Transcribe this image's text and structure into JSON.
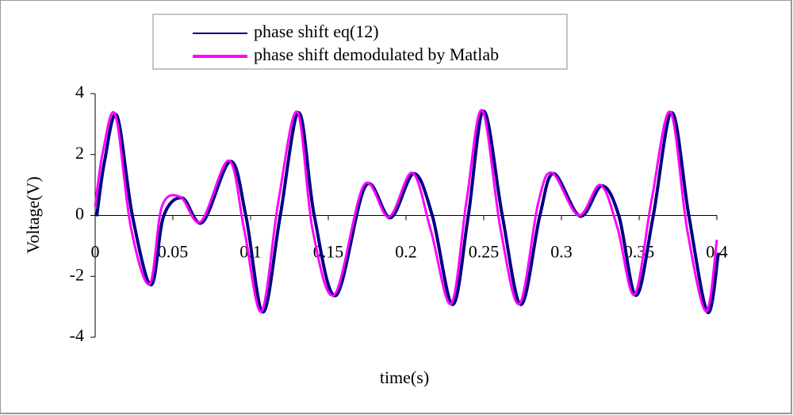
{
  "chart_data": {
    "type": "line",
    "x_label": "time(s)",
    "y_label": "Voltage(V)",
    "x": [
      0,
      0.005,
      0.013,
      0.023,
      0.035,
      0.043,
      0.055,
      0.068,
      0.086,
      0.096,
      0.107,
      0.118,
      0.13,
      0.14,
      0.154,
      0.173,
      0.189,
      0.204,
      0.216,
      0.229,
      0.239,
      0.249,
      0.261,
      0.273,
      0.285,
      0.294,
      0.311,
      0.325,
      0.336,
      0.347,
      0.358,
      0.37,
      0.381,
      0.393,
      0.4
    ],
    "series": [
      {
        "name": "phase shift eq(12)",
        "color": "#000080",
        "values": [
          0,
          1.8,
          3.3,
          0,
          -2.25,
          0,
          0.6,
          -0.2,
          1.8,
          0,
          -3.15,
          0,
          3.4,
          0,
          -2.6,
          1.0,
          -0.05,
          1.4,
          0,
          -2.9,
          0,
          3.45,
          0,
          -2.9,
          0,
          1.4,
          0,
          1.0,
          0,
          -2.6,
          0,
          3.4,
          0,
          -3.15,
          -1.2
        ]
      },
      {
        "name": "phase shift demodulated by Matlab",
        "color": "#ff00ff",
        "values": [
          0.3,
          2.1,
          3.3,
          -0.4,
          -2.25,
          0.3,
          0.6,
          -0.2,
          1.8,
          -0.5,
          -3.15,
          0.5,
          3.4,
          -0.5,
          -2.6,
          1.0,
          -0.05,
          1.4,
          -0.5,
          -2.9,
          0.5,
          3.45,
          -0.5,
          -2.9,
          0.4,
          1.4,
          0,
          1.0,
          -0.4,
          -2.6,
          0.5,
          3.4,
          -0.5,
          -3.15,
          -0.8
        ]
      }
    ],
    "xlim": [
      0,
      0.4
    ],
    "xticks": [
      0,
      0.05,
      0.1,
      0.15,
      0.2,
      0.25,
      0.3,
      0.35,
      0.4
    ],
    "ylim": [
      -4,
      4
    ],
    "yticks": [
      -4,
      -2,
      0,
      2,
      4
    ]
  }
}
